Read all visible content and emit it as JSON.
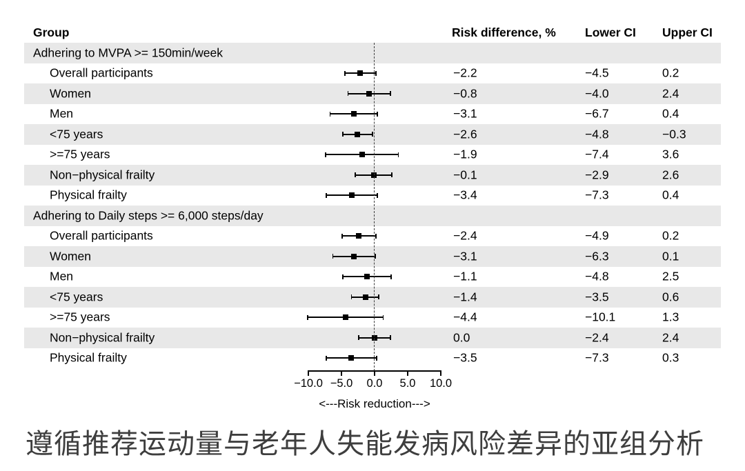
{
  "caption": "遵循推荐运动量与老年人失能发病风险差异的亚组分析",
  "chart_data": {
    "type": "forest",
    "columns": [
      "Group",
      "Risk difference, %",
      "Lower CI",
      "Upper CI"
    ],
    "xlabel": "<---Risk reduction--->",
    "x_axis": {
      "range": [
        -10,
        10
      ],
      "ticks": [
        -10,
        -5,
        0,
        5,
        10
      ],
      "tick_labels": [
        "−10.0",
        "−5.0",
        "0.0",
        "5.0",
        "10.0"
      ],
      "reference_line": 0
    },
    "rows": [
      {
        "type": "group",
        "label": "Adhering to MVPA >= 150min/week"
      },
      {
        "type": "data",
        "label": "Overall participants",
        "estimate": -2.2,
        "lower": -4.5,
        "upper": 0.2,
        "text": {
          "estimate": "−2.2",
          "lower": "−4.5",
          "upper": "0.2"
        }
      },
      {
        "type": "data",
        "label": "Women",
        "estimate": -0.8,
        "lower": -4.0,
        "upper": 2.4,
        "text": {
          "estimate": "−0.8",
          "lower": "−4.0",
          "upper": "2.4"
        }
      },
      {
        "type": "data",
        "label": "Men",
        "estimate": -3.1,
        "lower": -6.7,
        "upper": 0.4,
        "text": {
          "estimate": "−3.1",
          "lower": "−6.7",
          "upper": "0.4"
        }
      },
      {
        "type": "data",
        "label": "<75 years",
        "estimate": -2.6,
        "lower": -4.8,
        "upper": -0.3,
        "text": {
          "estimate": "−2.6",
          "lower": "−4.8",
          "upper": "−0.3"
        }
      },
      {
        "type": "data",
        "label": ">=75 years",
        "estimate": -1.9,
        "lower": -7.4,
        "upper": 3.6,
        "text": {
          "estimate": "−1.9",
          "lower": "−7.4",
          "upper": "3.6"
        }
      },
      {
        "type": "data",
        "label": "Non−physical frailty",
        "estimate": -0.1,
        "lower": -2.9,
        "upper": 2.6,
        "text": {
          "estimate": "−0.1",
          "lower": "−2.9",
          "upper": "2.6"
        }
      },
      {
        "type": "data",
        "label": "Physical frailty",
        "estimate": -3.4,
        "lower": -7.3,
        "upper": 0.4,
        "text": {
          "estimate": "−3.4",
          "lower": "−7.3",
          "upper": "0.4"
        }
      },
      {
        "type": "group",
        "label": "Adhering to Daily steps >= 6,000 steps/day"
      },
      {
        "type": "data",
        "label": "Overall participants",
        "estimate": -2.4,
        "lower": -4.9,
        "upper": 0.2,
        "text": {
          "estimate": "−2.4",
          "lower": "−4.9",
          "upper": "0.2"
        }
      },
      {
        "type": "data",
        "label": "Women",
        "estimate": -3.1,
        "lower": -6.3,
        "upper": 0.1,
        "text": {
          "estimate": "−3.1",
          "lower": "−6.3",
          "upper": "0.1"
        }
      },
      {
        "type": "data",
        "label": "Men",
        "estimate": -1.1,
        "lower": -4.8,
        "upper": 2.5,
        "text": {
          "estimate": "−1.1",
          "lower": "−4.8",
          "upper": "2.5"
        }
      },
      {
        "type": "data",
        "label": "<75 years",
        "estimate": -1.4,
        "lower": -3.5,
        "upper": 0.6,
        "text": {
          "estimate": "−1.4",
          "lower": "−3.5",
          "upper": "0.6"
        }
      },
      {
        "type": "data",
        "label": ">=75 years",
        "estimate": -4.4,
        "lower": -10.1,
        "upper": 1.3,
        "text": {
          "estimate": "−4.4",
          "lower": "−10.1",
          "upper": "1.3"
        }
      },
      {
        "type": "data",
        "label": "Non−physical frailty",
        "estimate": 0.0,
        "lower": -2.4,
        "upper": 2.4,
        "text": {
          "estimate": "0.0",
          "lower": "−2.4",
          "upper": "2.4"
        }
      },
      {
        "type": "data",
        "label": "Physical frailty",
        "estimate": -3.5,
        "lower": -7.3,
        "upper": 0.3,
        "text": {
          "estimate": "−3.5",
          "lower": "−7.3",
          "upper": "0.3"
        }
      }
    ]
  }
}
